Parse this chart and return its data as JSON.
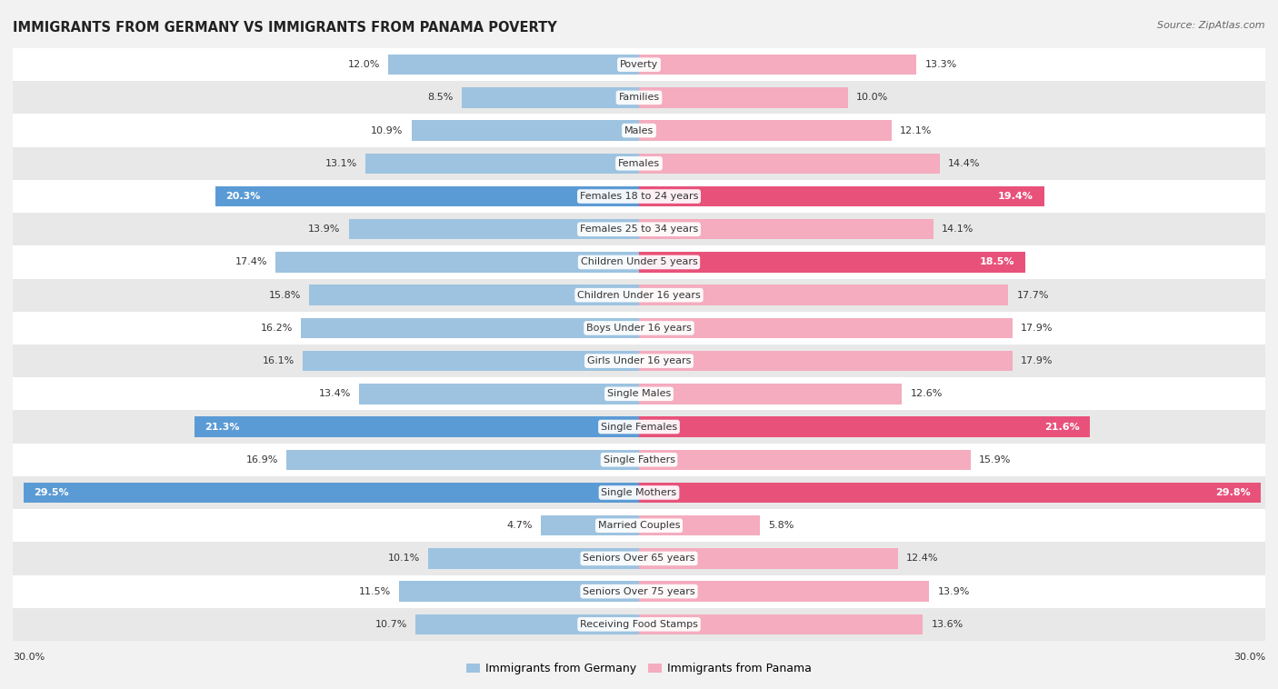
{
  "title": "IMMIGRANTS FROM GERMANY VS IMMIGRANTS FROM PANAMA POVERTY",
  "source": "Source: ZipAtlas.com",
  "categories": [
    "Poverty",
    "Families",
    "Males",
    "Females",
    "Females 18 to 24 years",
    "Females 25 to 34 years",
    "Children Under 5 years",
    "Children Under 16 years",
    "Boys Under 16 years",
    "Girls Under 16 years",
    "Single Males",
    "Single Females",
    "Single Fathers",
    "Single Mothers",
    "Married Couples",
    "Seniors Over 65 years",
    "Seniors Over 75 years",
    "Receiving Food Stamps"
  ],
  "germany_values": [
    12.0,
    8.5,
    10.9,
    13.1,
    20.3,
    13.9,
    17.4,
    15.8,
    16.2,
    16.1,
    13.4,
    21.3,
    16.9,
    29.5,
    4.7,
    10.1,
    11.5,
    10.7
  ],
  "panama_values": [
    13.3,
    10.0,
    12.1,
    14.4,
    19.4,
    14.1,
    18.5,
    17.7,
    17.9,
    17.9,
    12.6,
    21.6,
    15.9,
    29.8,
    5.8,
    12.4,
    13.9,
    13.6
  ],
  "germany_color_normal": "#9dc3e0",
  "germany_color_highlight": "#5b9bd5",
  "panama_color_normal": "#f4acbe",
  "panama_color_highlight": "#e8527a",
  "highlight_threshold": 18.0,
  "max_value": 30.0,
  "bg_color": "#f2f2f2",
  "row_color_odd": "#ffffff",
  "row_color_even": "#e8e8e8",
  "bar_height": 0.62,
  "value_fontsize": 8.0,
  "cat_fontsize": 8.0,
  "title_fontsize": 10.5,
  "legend_fontsize": 9.0,
  "source_fontsize": 8.0
}
